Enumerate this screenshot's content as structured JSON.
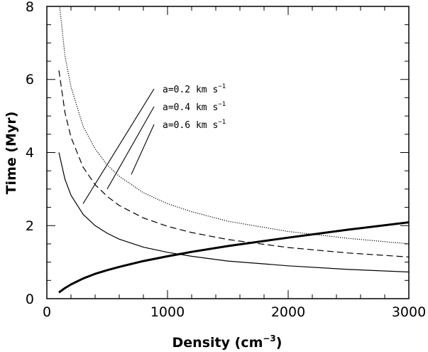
{
  "chart_data": {
    "type": "line",
    "xlabel": "Density",
    "xlabel_unit": "cm",
    "xlabel_unit_exp": "−3",
    "ylabel": "Time (Myr)",
    "xlim": [
      0,
      3000
    ],
    "ylim": [
      0,
      8
    ],
    "x_ticks": [
      0,
      1000,
      2000,
      3000
    ],
    "y_ticks": [
      0,
      2,
      4,
      6,
      8
    ],
    "grid": false,
    "series": [
      {
        "style": "dotted",
        "x": [
          100,
          150,
          200,
          300,
          400,
          500,
          600,
          800,
          1000,
          1200,
          1500,
          2000,
          2500,
          3000
        ],
        "y": [
          8.2,
          6.65,
          5.8,
          4.72,
          4.1,
          3.66,
          3.35,
          2.9,
          2.6,
          2.38,
          2.12,
          1.84,
          1.65,
          1.5
        ]
      },
      {
        "style": "dashed",
        "x": [
          100,
          150,
          200,
          300,
          400,
          500,
          600,
          800,
          1000,
          1200,
          1500,
          2000,
          2500,
          3000
        ],
        "y": [
          6.25,
          5.1,
          4.42,
          3.6,
          3.12,
          2.8,
          2.55,
          2.21,
          1.98,
          1.81,
          1.62,
          1.4,
          1.25,
          1.14
        ]
      },
      {
        "style": "solid-thin",
        "x": [
          100,
          150,
          200,
          300,
          400,
          500,
          600,
          800,
          1000,
          1200,
          1500,
          2000,
          2500,
          3000
        ],
        "y": [
          4.0,
          3.27,
          2.83,
          2.31,
          2.0,
          1.79,
          1.63,
          1.41,
          1.27,
          1.16,
          1.03,
          0.9,
          0.8,
          0.73
        ]
      },
      {
        "style": "solid-thick",
        "x": [
          100,
          150,
          200,
          300,
          400,
          500,
          600,
          800,
          1000,
          1200,
          1500,
          2000,
          2500,
          3000
        ],
        "y": [
          0.17,
          0.29,
          0.39,
          0.55,
          0.68,
          0.78,
          0.87,
          1.03,
          1.16,
          1.28,
          1.44,
          1.67,
          1.89,
          2.09
        ]
      }
    ],
    "annotations": [
      {
        "text": "a=0.2 km s",
        "exp": "−1",
        "pointer_x": 300,
        "pointer_y": 2.6
      },
      {
        "text": "a=0.4 km s",
        "exp": "−1",
        "pointer_x": 500,
        "pointer_y": 3.0
      },
      {
        "text": "a=0.6 km s",
        "exp": "−1",
        "pointer_x": 700,
        "pointer_y": 3.4
      }
    ]
  }
}
